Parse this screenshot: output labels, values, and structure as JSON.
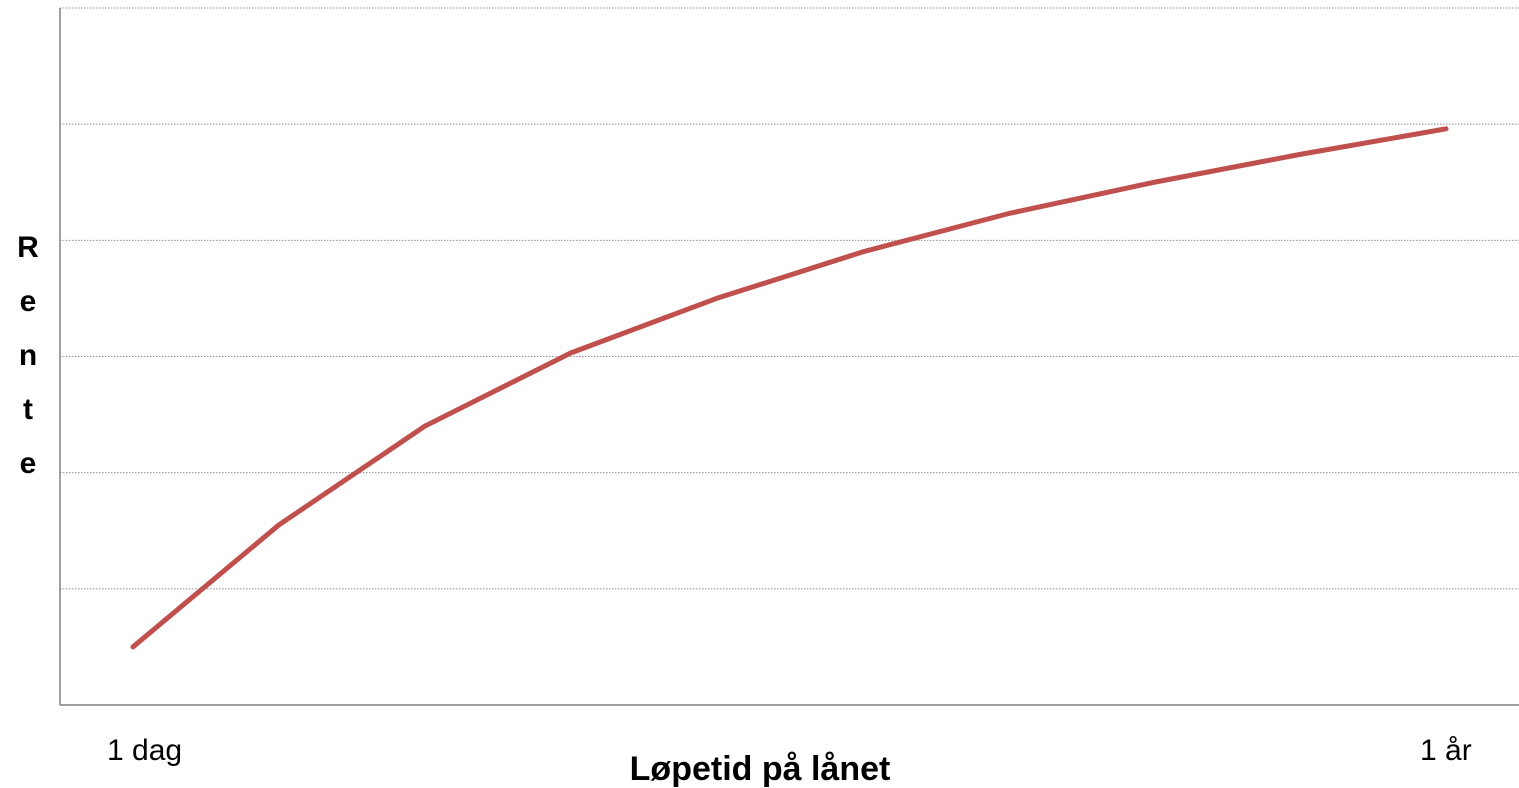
{
  "chart_data": {
    "type": "line",
    "xlabel": "Løpetid på lånet",
    "ylabel": "Rente",
    "x_tick_labels": [
      "1 dag",
      "1 år"
    ],
    "x": [
      1,
      2,
      3,
      4,
      5,
      6,
      7,
      8,
      9,
      10
    ],
    "xlim": [
      0.5,
      10.5
    ],
    "ylim": [
      0,
      6
    ],
    "y_gridlines": [
      1,
      2,
      3,
      4,
      5,
      6
    ],
    "grid": true,
    "series": [
      {
        "values": [
          0.5,
          1.55,
          2.4,
          3.03,
          3.5,
          3.9,
          4.23,
          4.5,
          4.74,
          4.96
        ],
        "color": "#C0504D"
      }
    ],
    "colors": {
      "line": "#C0504D",
      "axis": "#808080",
      "grid": "#909090"
    }
  }
}
